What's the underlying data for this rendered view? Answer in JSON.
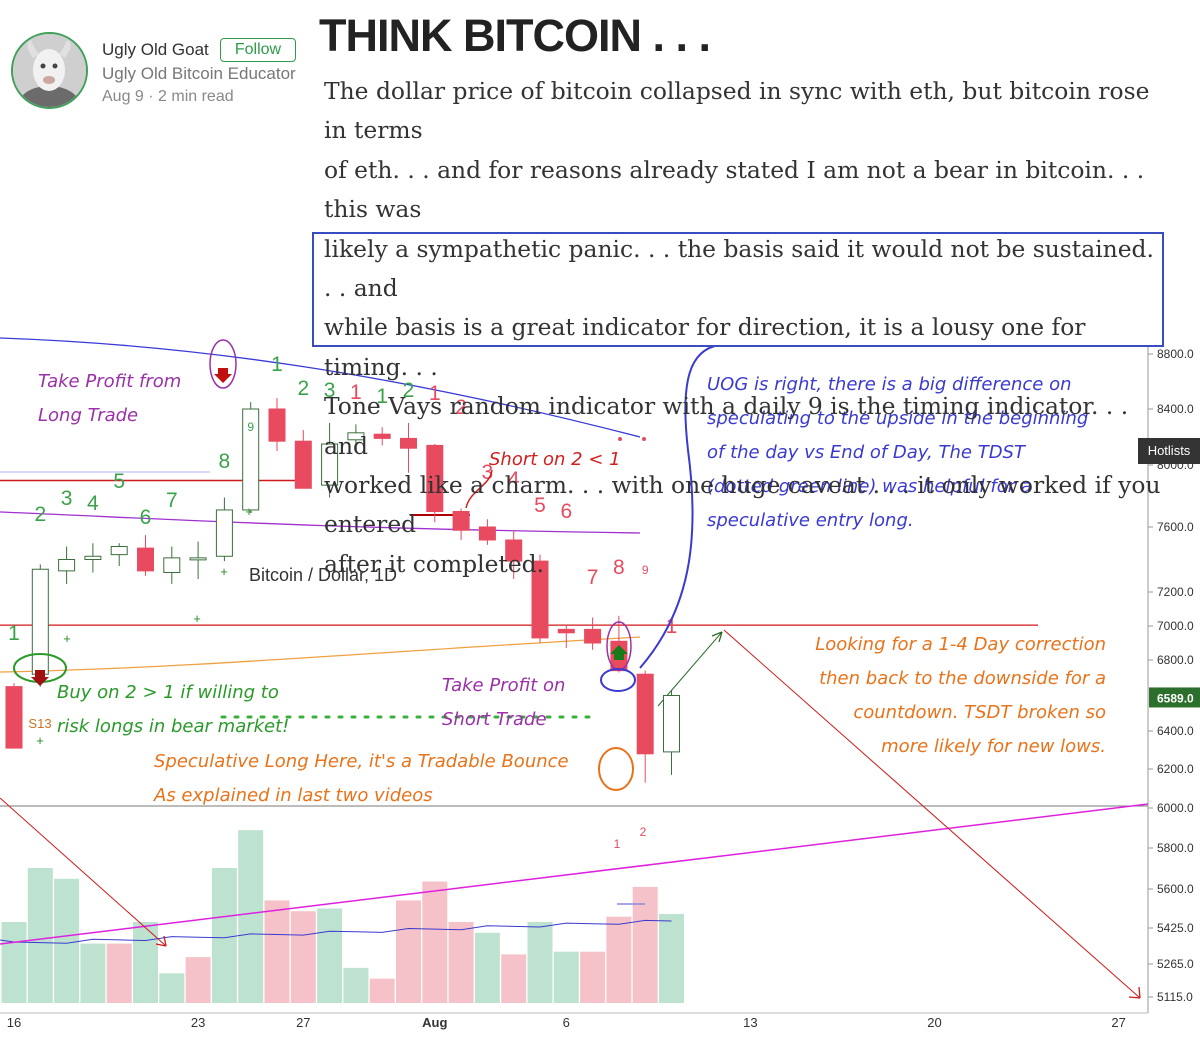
{
  "author": {
    "name": "Ugly Old Goat",
    "follow_label": "Follow",
    "bio": "Ugly Old Bitcoin Educator",
    "meta": "Aug 9 · 2 min read"
  },
  "article": {
    "title": "THINK BITCOIN . . .",
    "lines": [
      "The dollar price of bitcoin collapsed in sync with eth, but bitcoin rose in terms",
      "of eth. . . and for reasons already stated I am not a bear in bitcoin. . . this was",
      "likely a sympathetic panic. . . the basis said it would not be sustained. . . and",
      "while basis is a great indicator for direction, it is a lousy one for timing. . .",
      "Tone Vays random indicator with a daily 9 is the timing indicator. . . and",
      "worked like a charm. . . with one huge caveat . . . it only worked if you entered",
      "after it completed."
    ]
  },
  "hotlists_label": "Hotlists",
  "chart_data": {
    "type": "candlestick",
    "title": "Bitcoin / Dollar, 1D",
    "y_ticks": [
      8800,
      8400,
      8000,
      7600,
      7200,
      7000,
      6800,
      6400,
      6200,
      6000,
      5800,
      5600,
      5425,
      5265,
      5115
    ],
    "current_price_label": "6589.0",
    "x_tick_labels": [
      "16",
      "23",
      "27",
      "Aug",
      "6",
      "13",
      "20",
      "27"
    ],
    "x_tick_days": [
      0,
      7,
      11,
      16,
      21,
      28,
      35,
      42
    ],
    "candles": [
      {
        "day": 0,
        "open": 6650,
        "high": 6670,
        "low": 6310,
        "close": 6310
      },
      {
        "day": 1,
        "open": 6720,
        "high": 7370,
        "low": 6650,
        "close": 7340
      },
      {
        "day": 2,
        "open": 7330,
        "high": 7480,
        "low": 7250,
        "close": 7400
      },
      {
        "day": 3,
        "open": 7400,
        "high": 7500,
        "low": 7320,
        "close": 7420
      },
      {
        "day": 4,
        "open": 7430,
        "high": 7500,
        "low": 7360,
        "close": 7480
      },
      {
        "day": 5,
        "open": 7470,
        "high": 7550,
        "low": 7300,
        "close": 7330
      },
      {
        "day": 6,
        "open": 7320,
        "high": 7480,
        "low": 7250,
        "close": 7410
      },
      {
        "day": 7,
        "open": 7410,
        "high": 7510,
        "low": 7280,
        "close": 7410
      },
      {
        "day": 8,
        "open": 7420,
        "high": 7790,
        "low": 7390,
        "close": 7710
      },
      {
        "day": 9,
        "open": 7710,
        "high": 8450,
        "low": 7690,
        "close": 8400
      },
      {
        "day": 10,
        "open": 8400,
        "high": 8480,
        "low": 8100,
        "close": 8170
      },
      {
        "day": 11,
        "open": 8170,
        "high": 8250,
        "low": 7850,
        "close": 7850
      },
      {
        "day": 12,
        "open": 7870,
        "high": 8300,
        "low": 7790,
        "close": 8150
      },
      {
        "day": 13,
        "open": 8180,
        "high": 8290,
        "low": 8130,
        "close": 8230
      },
      {
        "day": 14,
        "open": 8220,
        "high": 8270,
        "low": 8140,
        "close": 8190
      },
      {
        "day": 15,
        "open": 8190,
        "high": 8300,
        "low": 7950,
        "close": 8120
      },
      {
        "day": 16,
        "open": 8140,
        "high": 8150,
        "low": 7630,
        "close": 7700
      },
      {
        "day": 17,
        "open": 7700,
        "high": 7720,
        "low": 7520,
        "close": 7580
      },
      {
        "day": 18,
        "open": 7600,
        "high": 7650,
        "low": 7490,
        "close": 7520
      },
      {
        "day": 19,
        "open": 7520,
        "high": 7580,
        "low": 7280,
        "close": 7390
      },
      {
        "day": 20,
        "open": 7390,
        "high": 7430,
        "low": 6900,
        "close": 6930
      },
      {
        "day": 21,
        "open": 6980,
        "high": 7000,
        "low": 6870,
        "close": 6960
      },
      {
        "day": 22,
        "open": 6980,
        "high": 7050,
        "low": 6860,
        "close": 6900
      },
      {
        "day": 23,
        "open": 6910,
        "high": 7060,
        "low": 6730,
        "close": 6740
      },
      {
        "day": 24,
        "open": 6720,
        "high": 6740,
        "low": 6130,
        "close": 6280
      },
      {
        "day": 25,
        "open": 6290,
        "high": 6630,
        "low": 6170,
        "close": 6600
      }
    ],
    "tdst_level": 6330,
    "red_levels": [
      7900,
      7005
    ],
    "volume": {
      "values": [
        3,
        5,
        4.6,
        2.2,
        2.2,
        3,
        1.1,
        1.7,
        5,
        6.4,
        3.8,
        3.4,
        3.5,
        1.3,
        0.9,
        3.8,
        4.5,
        3,
        2.6,
        1.8,
        3,
        1.9,
        1.9,
        3.2,
        4.3,
        3.3
      ],
      "colors": [
        "g",
        "g",
        "g",
        "g",
        "r",
        "g",
        "g",
        "r",
        "g",
        "g",
        "r",
        "r",
        "g",
        "g",
        "r",
        "r",
        "r",
        "r",
        "g",
        "r",
        "g",
        "g",
        "r",
        "r",
        "r",
        "g"
      ]
    },
    "td_counts": [
      {
        "day": 0,
        "text": "1",
        "color": "green"
      },
      {
        "day": 1,
        "text": "2",
        "color": "green"
      },
      {
        "day": 2,
        "text": "3",
        "color": "green"
      },
      {
        "day": 3,
        "text": "4",
        "color": "green"
      },
      {
        "day": 4,
        "text": "5",
        "color": "green"
      },
      {
        "day": 5,
        "text": "6",
        "color": "green"
      },
      {
        "day": 6,
        "text": "7",
        "color": "green"
      },
      {
        "day": 8,
        "text": "8",
        "color": "green"
      },
      {
        "day": 9,
        "text": "9",
        "color": "green"
      },
      {
        "day": 10,
        "text": "1",
        "color": "green"
      },
      {
        "day": 11,
        "text": "2",
        "color": "green"
      },
      {
        "day": 12,
        "text": "3",
        "color": "green"
      },
      {
        "day": 13,
        "text": "1",
        "color": "red"
      },
      {
        "day": 14,
        "text": "1",
        "color": "green"
      },
      {
        "day": 15,
        "text": "2",
        "color": "green"
      },
      {
        "day": 16,
        "text": "1",
        "color": "red"
      },
      {
        "day": 17,
        "text": "2",
        "color": "red"
      },
      {
        "day": 18,
        "text": "3",
        "color": "red"
      },
      {
        "day": 19,
        "text": "4",
        "color": "red"
      },
      {
        "day": 20,
        "text": "5",
        "color": "red"
      },
      {
        "day": 21,
        "text": "6",
        "color": "red"
      },
      {
        "day": 22,
        "text": "7",
        "color": "red"
      },
      {
        "day": 23,
        "text": "8",
        "color": "red"
      },
      {
        "day": 24,
        "text": "9",
        "color": "red"
      },
      {
        "day": 25,
        "text": "1",
        "color": "red"
      }
    ],
    "markers": {
      "s13": "S13",
      "volume_counts": [
        "1",
        "2"
      ]
    },
    "annotations": {
      "take_profit_long": [
        "Take Profit from",
        "Long Trade"
      ],
      "short_on": "Short on 2 < 1",
      "buy_on": [
        "Buy on 2 > 1 if willing to",
        "risk longs in bear market!"
      ],
      "take_profit_short": [
        "Take Profit on",
        "Short Trade"
      ],
      "speculative": [
        "Speculative Long Here, it's a Tradable Bounce",
        "As explained in last two videos"
      ],
      "uog": [
        "UOG is right, there is a big difference on",
        "speculating to the upside in the beginning",
        "of the day vs End of Day, The TDST",
        "(dotted green line) was helpful for a",
        "speculative entry long."
      ],
      "looking": [
        "Looking for a 1-4 Day correction",
        "then back to the downside for a",
        "countdown. TSDT broken so",
        "more likely for new lows."
      ]
    },
    "colors": {
      "up": "#ffffff",
      "down": "#e84a5f",
      "up_stroke": "#3c6e3c",
      "volume_up": "#bde3d0",
      "volume_down": "#f6c2c9",
      "ma_blue": "#3a3ad8",
      "ma_purple": "#a030d0",
      "ma_orange": "#f0a040",
      "magenta": "#e020e0",
      "red_line": "#d01818",
      "annot_purple": "#9b30a8",
      "annot_red": "#d02020",
      "annot_green": "#2a9a2a",
      "annot_orange": "#e8731a",
      "annot_blue": "#3a3ad0"
    }
  }
}
